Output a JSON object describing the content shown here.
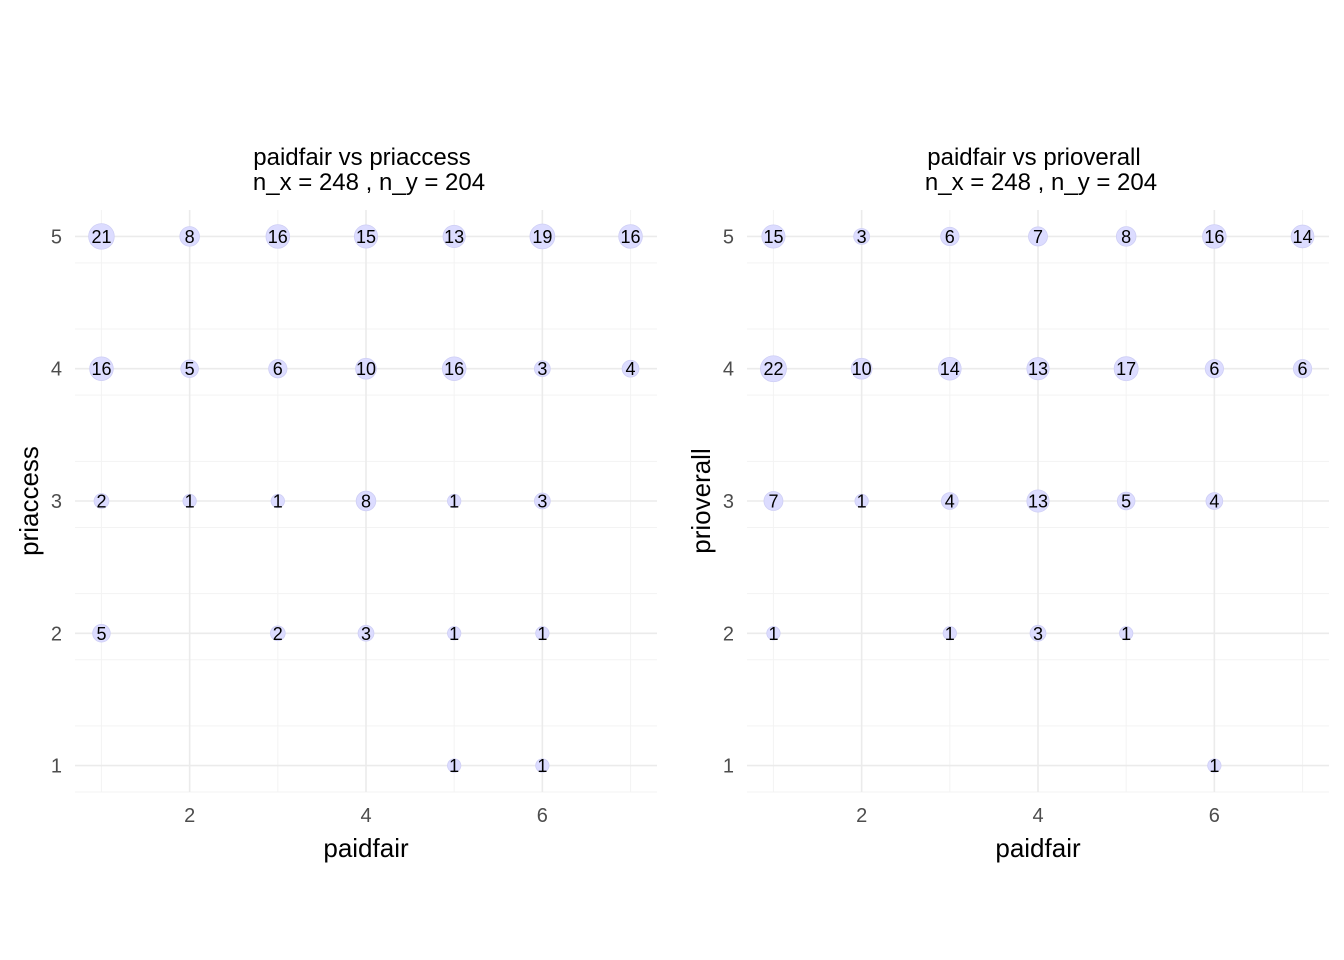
{
  "chart_data": [
    {
      "type": "scatter",
      "title": "paidfair vs priaccess",
      "subtitle": "n_x = 248 , n_y = 204",
      "xlabel": "paidfair",
      "ylabel": "priaccess",
      "xlim": [
        0.7,
        7.3
      ],
      "ylim": [
        0.8,
        5.2
      ],
      "x_ticks": [
        2,
        4,
        6
      ],
      "y_ticks": [
        1,
        2,
        3,
        4,
        5
      ],
      "grid": true,
      "point_color": "#dcdcff",
      "points": [
        {
          "x": 1,
          "y": 5,
          "count": 21
        },
        {
          "x": 2,
          "y": 5,
          "count": 8
        },
        {
          "x": 3,
          "y": 5,
          "count": 16
        },
        {
          "x": 4,
          "y": 5,
          "count": 15
        },
        {
          "x": 5,
          "y": 5,
          "count": 13
        },
        {
          "x": 6,
          "y": 5,
          "count": 19
        },
        {
          "x": 7,
          "y": 5,
          "count": 16
        },
        {
          "x": 1,
          "y": 4,
          "count": 16
        },
        {
          "x": 2,
          "y": 4,
          "count": 5
        },
        {
          "x": 3,
          "y": 4,
          "count": 6
        },
        {
          "x": 4,
          "y": 4,
          "count": 10
        },
        {
          "x": 5,
          "y": 4,
          "count": 16
        },
        {
          "x": 6,
          "y": 4,
          "count": 3
        },
        {
          "x": 7,
          "y": 4,
          "count": 4
        },
        {
          "x": 1,
          "y": 3,
          "count": 2
        },
        {
          "x": 2,
          "y": 3,
          "count": 1
        },
        {
          "x": 3,
          "y": 3,
          "count": 1
        },
        {
          "x": 4,
          "y": 3,
          "count": 8
        },
        {
          "x": 5,
          "y": 3,
          "count": 1
        },
        {
          "x": 6,
          "y": 3,
          "count": 3
        },
        {
          "x": 1,
          "y": 2,
          "count": 5
        },
        {
          "x": 3,
          "y": 2,
          "count": 2
        },
        {
          "x": 4,
          "y": 2,
          "count": 3
        },
        {
          "x": 5,
          "y": 2,
          "count": 1
        },
        {
          "x": 6,
          "y": 2,
          "count": 1
        },
        {
          "x": 5,
          "y": 1,
          "count": 1
        },
        {
          "x": 6,
          "y": 1,
          "count": 1
        }
      ]
    },
    {
      "type": "scatter",
      "title": "paidfair vs prioverall",
      "subtitle": "n_x = 248 , n_y = 204",
      "xlabel": "paidfair",
      "ylabel": "prioverall",
      "xlim": [
        0.7,
        7.3
      ],
      "ylim": [
        0.8,
        5.2
      ],
      "x_ticks": [
        2,
        4,
        6
      ],
      "y_ticks": [
        1,
        2,
        3,
        4,
        5
      ],
      "grid": true,
      "point_color": "#dcdcff",
      "points": [
        {
          "x": 1,
          "y": 5,
          "count": 15
        },
        {
          "x": 2,
          "y": 5,
          "count": 3
        },
        {
          "x": 3,
          "y": 5,
          "count": 6
        },
        {
          "x": 4,
          "y": 5,
          "count": 7
        },
        {
          "x": 5,
          "y": 5,
          "count": 8
        },
        {
          "x": 6,
          "y": 5,
          "count": 16
        },
        {
          "x": 7,
          "y": 5,
          "count": 14
        },
        {
          "x": 1,
          "y": 4,
          "count": 22
        },
        {
          "x": 2,
          "y": 4,
          "count": 10
        },
        {
          "x": 3,
          "y": 4,
          "count": 14
        },
        {
          "x": 4,
          "y": 4,
          "count": 13
        },
        {
          "x": 5,
          "y": 4,
          "count": 17
        },
        {
          "x": 6,
          "y": 4,
          "count": 6
        },
        {
          "x": 7,
          "y": 4,
          "count": 6
        },
        {
          "x": 1,
          "y": 3,
          "count": 7
        },
        {
          "x": 2,
          "y": 3,
          "count": 1
        },
        {
          "x": 3,
          "y": 3,
          "count": 4
        },
        {
          "x": 4,
          "y": 3,
          "count": 13
        },
        {
          "x": 5,
          "y": 3,
          "count": 5
        },
        {
          "x": 6,
          "y": 3,
          "count": 4
        },
        {
          "x": 1,
          "y": 2,
          "count": 1
        },
        {
          "x": 3,
          "y": 2,
          "count": 1
        },
        {
          "x": 4,
          "y": 2,
          "count": 3
        },
        {
          "x": 5,
          "y": 2,
          "count": 1
        },
        {
          "x": 6,
          "y": 1,
          "count": 1
        }
      ]
    }
  ]
}
